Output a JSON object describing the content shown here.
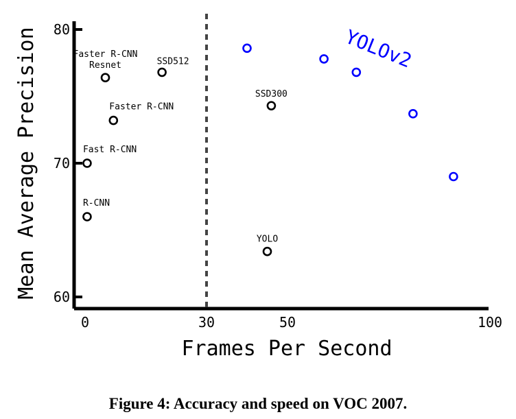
{
  "figure": {
    "caption_label": "Figure 4:",
    "caption_text": "Accuracy and speed on VOC 2007."
  },
  "chart_data": {
    "type": "scatter",
    "title": "",
    "xlabel": "Frames Per Second",
    "ylabel": "Mean Average Precision",
    "xlim": [
      -2,
      100
    ],
    "ylim": [
      59,
      81
    ],
    "x_ticks": [
      0,
      30,
      50,
      100
    ],
    "y_ticks": [
      60,
      70,
      80
    ],
    "grid": false,
    "reference_line": {
      "x": 30,
      "style": "dashed"
    },
    "series": [
      {
        "color": "#000000",
        "points": [
          {
            "x": 0.5,
            "y": 66.0,
            "label": "R-CNN"
          },
          {
            "x": 0.5,
            "y": 70.0,
            "label": "Fast R-CNN"
          },
          {
            "x": 7,
            "y": 73.2,
            "label": "Faster R-CNN"
          },
          {
            "x": 5,
            "y": 76.4,
            "label": "Faster R-CNN\nResnet"
          },
          {
            "x": 19,
            "y": 76.8,
            "label": "SSD512"
          },
          {
            "x": 46,
            "y": 74.3,
            "label": "SSD300"
          },
          {
            "x": 45,
            "y": 63.4,
            "label": "YOLO"
          }
        ]
      },
      {
        "name": "YOLOv2",
        "color": "#0000ff",
        "points": [
          {
            "x": 40,
            "y": 78.6
          },
          {
            "x": 59,
            "y": 77.8
          },
          {
            "x": 67,
            "y": 76.8
          },
          {
            "x": 81,
            "y": 73.7
          },
          {
            "x": 91,
            "y": 69.0
          }
        ]
      }
    ]
  }
}
